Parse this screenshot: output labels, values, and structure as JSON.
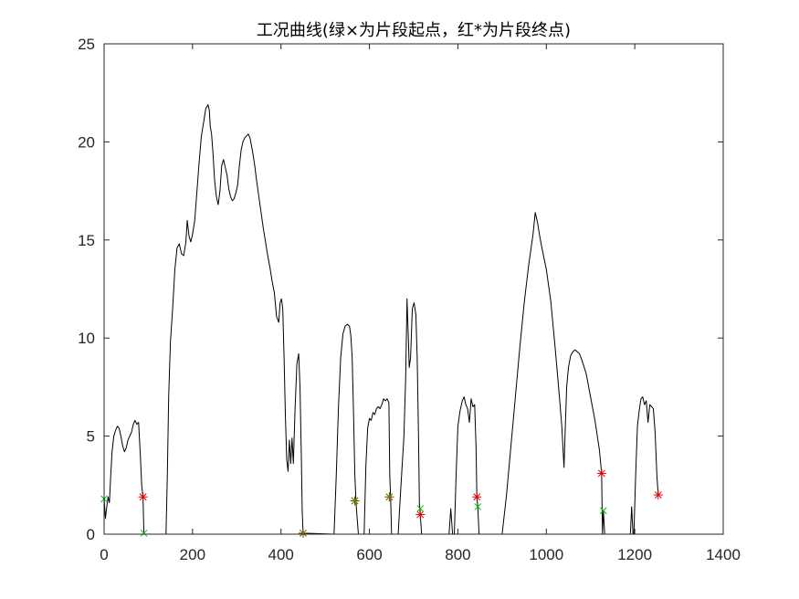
{
  "chart_data": {
    "type": "line",
    "title": "工况曲线(绿×为片段起点，红*为片段终点)",
    "xlabel": "",
    "ylabel": "",
    "xlim": [
      0,
      1400
    ],
    "ylim": [
      0,
      25
    ],
    "xticks": [
      0,
      200,
      400,
      600,
      800,
      1000,
      1200,
      1400
    ],
    "yticks": [
      0,
      5,
      10,
      15,
      20,
      25
    ],
    "grid": false,
    "box": true,
    "series": [
      {
        "color": "#000000",
        "points": [
          [
            0,
            1.8
          ],
          [
            3,
            0.8
          ],
          [
            6,
            1.4
          ],
          [
            9,
            1.9
          ],
          [
            12,
            1.6
          ],
          [
            15,
            3.0
          ],
          [
            18,
            4.2
          ],
          [
            22,
            5.0
          ],
          [
            26,
            5.3
          ],
          [
            30,
            5.5
          ],
          [
            34,
            5.4
          ],
          [
            38,
            5.0
          ],
          [
            42,
            4.5
          ],
          [
            46,
            4.2
          ],
          [
            50,
            4.4
          ],
          [
            54,
            4.8
          ],
          [
            58,
            5.0
          ],
          [
            62,
            5.2
          ],
          [
            66,
            5.6
          ],
          [
            70,
            5.8
          ],
          [
            74,
            5.6
          ],
          [
            78,
            5.7
          ],
          [
            82,
            4.0
          ],
          [
            85,
            2.5
          ],
          [
            88,
            1.9
          ],
          [
            90,
            0.0
          ],
          [
            140,
            0.0
          ],
          [
            143,
            3.0
          ],
          [
            146,
            7.0
          ],
          [
            150,
            9.8
          ],
          [
            155,
            11.5
          ],
          [
            160,
            13.5
          ],
          [
            165,
            14.6
          ],
          [
            170,
            14.8
          ],
          [
            175,
            14.3
          ],
          [
            180,
            14.2
          ],
          [
            185,
            14.9
          ],
          [
            188,
            16.0
          ],
          [
            192,
            15.2
          ],
          [
            196,
            14.9
          ],
          [
            200,
            15.3
          ],
          [
            205,
            16.0
          ],
          [
            210,
            17.5
          ],
          [
            215,
            19.0
          ],
          [
            220,
            20.3
          ],
          [
            225,
            21.0
          ],
          [
            230,
            21.7
          ],
          [
            235,
            21.9
          ],
          [
            238,
            21.6
          ],
          [
            240,
            20.8
          ],
          [
            243,
            20.4
          ],
          [
            246,
            19.5
          ],
          [
            250,
            18.0
          ],
          [
            254,
            17.2
          ],
          [
            258,
            16.8
          ],
          [
            262,
            17.5
          ],
          [
            266,
            18.8
          ],
          [
            270,
            19.1
          ],
          [
            274,
            18.7
          ],
          [
            278,
            18.3
          ],
          [
            282,
            17.6
          ],
          [
            286,
            17.2
          ],
          [
            290,
            17.0
          ],
          [
            294,
            17.1
          ],
          [
            298,
            17.4
          ],
          [
            302,
            17.8
          ],
          [
            306,
            18.8
          ],
          [
            310,
            19.6
          ],
          [
            314,
            20.0
          ],
          [
            318,
            20.2
          ],
          [
            322,
            20.3
          ],
          [
            326,
            20.4
          ],
          [
            330,
            20.2
          ],
          [
            335,
            19.6
          ],
          [
            340,
            18.9
          ],
          [
            345,
            18.0
          ],
          [
            350,
            17.2
          ],
          [
            355,
            16.4
          ],
          [
            360,
            15.6
          ],
          [
            365,
            14.9
          ],
          [
            370,
            14.2
          ],
          [
            375,
            13.6
          ],
          [
            380,
            12.9
          ],
          [
            385,
            12.3
          ],
          [
            390,
            11.1
          ],
          [
            395,
            10.8
          ],
          [
            398,
            11.8
          ],
          [
            401,
            12.0
          ],
          [
            404,
            11.5
          ],
          [
            407,
            9.0
          ],
          [
            410,
            6.0
          ],
          [
            413,
            3.8
          ],
          [
            416,
            3.2
          ],
          [
            419,
            4.8
          ],
          [
            422,
            3.6
          ],
          [
            425,
            4.9
          ],
          [
            428,
            3.6
          ],
          [
            432,
            6.5
          ],
          [
            436,
            8.7
          ],
          [
            440,
            9.2
          ],
          [
            443,
            7.5
          ],
          [
            446,
            4.0
          ],
          [
            448,
            1.2
          ],
          [
            450,
            0.05
          ],
          [
            520,
            0.0
          ],
          [
            525,
            3.0
          ],
          [
            530,
            6.5
          ],
          [
            535,
            9.0
          ],
          [
            540,
            10.2
          ],
          [
            545,
            10.6
          ],
          [
            550,
            10.7
          ],
          [
            555,
            10.6
          ],
          [
            558,
            10.1
          ],
          [
            561,
            9.0
          ],
          [
            564,
            6.2
          ],
          [
            567,
            3.0
          ],
          [
            570,
            1.5
          ],
          [
            575,
            0.0
          ],
          [
            588,
            0.0
          ],
          [
            592,
            3.5
          ],
          [
            596,
            5.4
          ],
          [
            600,
            5.9
          ],
          [
            604,
            5.8
          ],
          [
            608,
            6.2
          ],
          [
            612,
            6.1
          ],
          [
            616,
            6.4
          ],
          [
            620,
            6.5
          ],
          [
            624,
            6.4
          ],
          [
            628,
            6.6
          ],
          [
            632,
            6.9
          ],
          [
            636,
            6.8
          ],
          [
            640,
            6.9
          ],
          [
            644,
            6.7
          ],
          [
            646,
            3.0
          ],
          [
            648,
            1.8
          ],
          [
            650,
            0.0
          ],
          [
            665,
            0.0
          ],
          [
            670,
            2.0
          ],
          [
            674,
            3.5
          ],
          [
            678,
            5.0
          ],
          [
            682,
            8.0
          ],
          [
            685,
            12.0
          ],
          [
            688,
            10.0
          ],
          [
            690,
            8.5
          ],
          [
            693,
            9.0
          ],
          [
            697,
            11.5
          ],
          [
            701,
            11.8
          ],
          [
            705,
            11.2
          ],
          [
            708,
            9.0
          ],
          [
            711,
            5.0
          ],
          [
            713,
            1.5
          ],
          [
            715,
            1.0
          ],
          [
            718,
            0.0
          ],
          [
            780,
            0.0
          ],
          [
            784,
            1.3
          ],
          [
            788,
            0.0
          ],
          [
            792,
            0.0
          ],
          [
            796,
            3.0
          ],
          [
            800,
            5.5
          ],
          [
            805,
            6.3
          ],
          [
            810,
            6.8
          ],
          [
            814,
            7.0
          ],
          [
            818,
            6.6
          ],
          [
            822,
            6.4
          ],
          [
            826,
            5.7
          ],
          [
            830,
            6.9
          ],
          [
            834,
            6.5
          ],
          [
            838,
            6.6
          ],
          [
            841,
            4.5
          ],
          [
            843,
            1.9
          ],
          [
            845,
            1.4
          ],
          [
            848,
            0.0
          ],
          [
            900,
            0.0
          ],
          [
            910,
            2.0
          ],
          [
            920,
            4.5
          ],
          [
            930,
            7.0
          ],
          [
            940,
            9.5
          ],
          [
            950,
            11.8
          ],
          [
            960,
            13.7
          ],
          [
            965,
            14.5
          ],
          [
            970,
            15.3
          ],
          [
            975,
            16.4
          ],
          [
            980,
            15.9
          ],
          [
            985,
            15.2
          ],
          [
            990,
            14.6
          ],
          [
            1000,
            13.5
          ],
          [
            1010,
            11.9
          ],
          [
            1020,
            9.5
          ],
          [
            1030,
            6.9
          ],
          [
            1035,
            5.5
          ],
          [
            1040,
            3.4
          ],
          [
            1043,
            5.5
          ],
          [
            1046,
            7.5
          ],
          [
            1050,
            8.5
          ],
          [
            1055,
            9.1
          ],
          [
            1060,
            9.3
          ],
          [
            1065,
            9.4
          ],
          [
            1070,
            9.3
          ],
          [
            1075,
            9.2
          ],
          [
            1080,
            8.9
          ],
          [
            1090,
            8.2
          ],
          [
            1100,
            7.0
          ],
          [
            1110,
            5.8
          ],
          [
            1120,
            4.3
          ],
          [
            1125,
            3.1
          ],
          [
            1127,
            0.0
          ],
          [
            1129,
            1.2
          ],
          [
            1132,
            0.0
          ],
          [
            1190,
            0.0
          ],
          [
            1193,
            1.4
          ],
          [
            1196,
            0.0
          ],
          [
            1198,
            0.0
          ],
          [
            1202,
            3.0
          ],
          [
            1206,
            5.5
          ],
          [
            1210,
            6.3
          ],
          [
            1214,
            6.9
          ],
          [
            1218,
            7.0
          ],
          [
            1222,
            6.6
          ],
          [
            1226,
            6.8
          ],
          [
            1230,
            5.7
          ],
          [
            1234,
            6.6
          ],
          [
            1238,
            6.5
          ],
          [
            1242,
            6.4
          ],
          [
            1246,
            5.2
          ],
          [
            1250,
            3.0
          ],
          [
            1253,
            2.0
          ]
        ]
      }
    ],
    "markers": {
      "start": {
        "symbol": "×",
        "color": "#00c000",
        "points": [
          [
            0,
            1.8
          ],
          [
            90,
            0.05
          ],
          [
            450,
            0.05
          ],
          [
            567,
            1.7
          ],
          [
            645,
            1.9
          ],
          [
            715,
            1.3
          ],
          [
            845,
            1.4
          ],
          [
            1129,
            1.2
          ]
        ]
      },
      "end": {
        "symbol": "*",
        "color": "#e00000",
        "points": [
          [
            88,
            1.9
          ],
          [
            450,
            0.05
          ],
          [
            567,
            1.7
          ],
          [
            645,
            1.9
          ],
          [
            715,
            1.0
          ],
          [
            843,
            1.9
          ],
          [
            1125,
            3.1
          ],
          [
            1253,
            2.0
          ]
        ]
      }
    }
  }
}
